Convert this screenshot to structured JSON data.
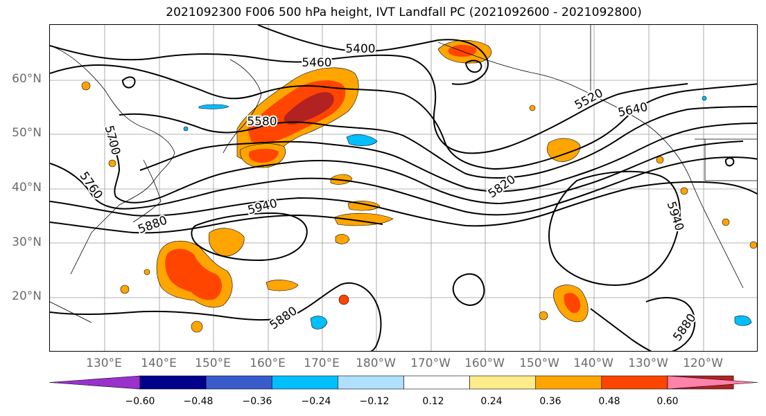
{
  "title": "2021092300 F006 500 hPa height, IVT Landfall PC (2021092600 - 2021092800)",
  "lat_labels": [
    "60°N",
    "50°N",
    "40°N",
    "30°N",
    "20°N"
  ],
  "lon_labels": [
    "130°E",
    "140°E",
    "150°E",
    "160°E",
    "170°E",
    "180°W",
    "170°W",
    "160°W",
    "150°W",
    "140°W",
    "130°W",
    "120°W"
  ],
  "contour_labels": [
    "5400",
    "5460",
    "5520",
    "5580",
    "5640",
    "5700",
    "5760",
    "5820",
    "5880",
    "5940",
    "5940",
    "5880",
    "5880"
  ],
  "colorbar": {
    "ticks": [
      "−0.60",
      "−0.48",
      "−0.36",
      "−0.24",
      "−0.12",
      "0.12",
      "0.24",
      "0.36",
      "0.48",
      "0.60"
    ],
    "colors": [
      "#9932cc",
      "#00008b",
      "#3a5bcc",
      "#00bfff",
      "#b0e0ff",
      "#ffffff",
      "#ffec8b",
      "#ffa500",
      "#ff4500",
      "#b22222",
      "#ff82ab"
    ]
  },
  "fill_colors": {
    "light_yellow": "#ffec8b",
    "orange": "#ffa500",
    "red_orange": "#ff4500",
    "dark_red": "#b22222",
    "light_blue": "#b0e0ff",
    "deep_sky_blue": "#00bfff"
  }
}
